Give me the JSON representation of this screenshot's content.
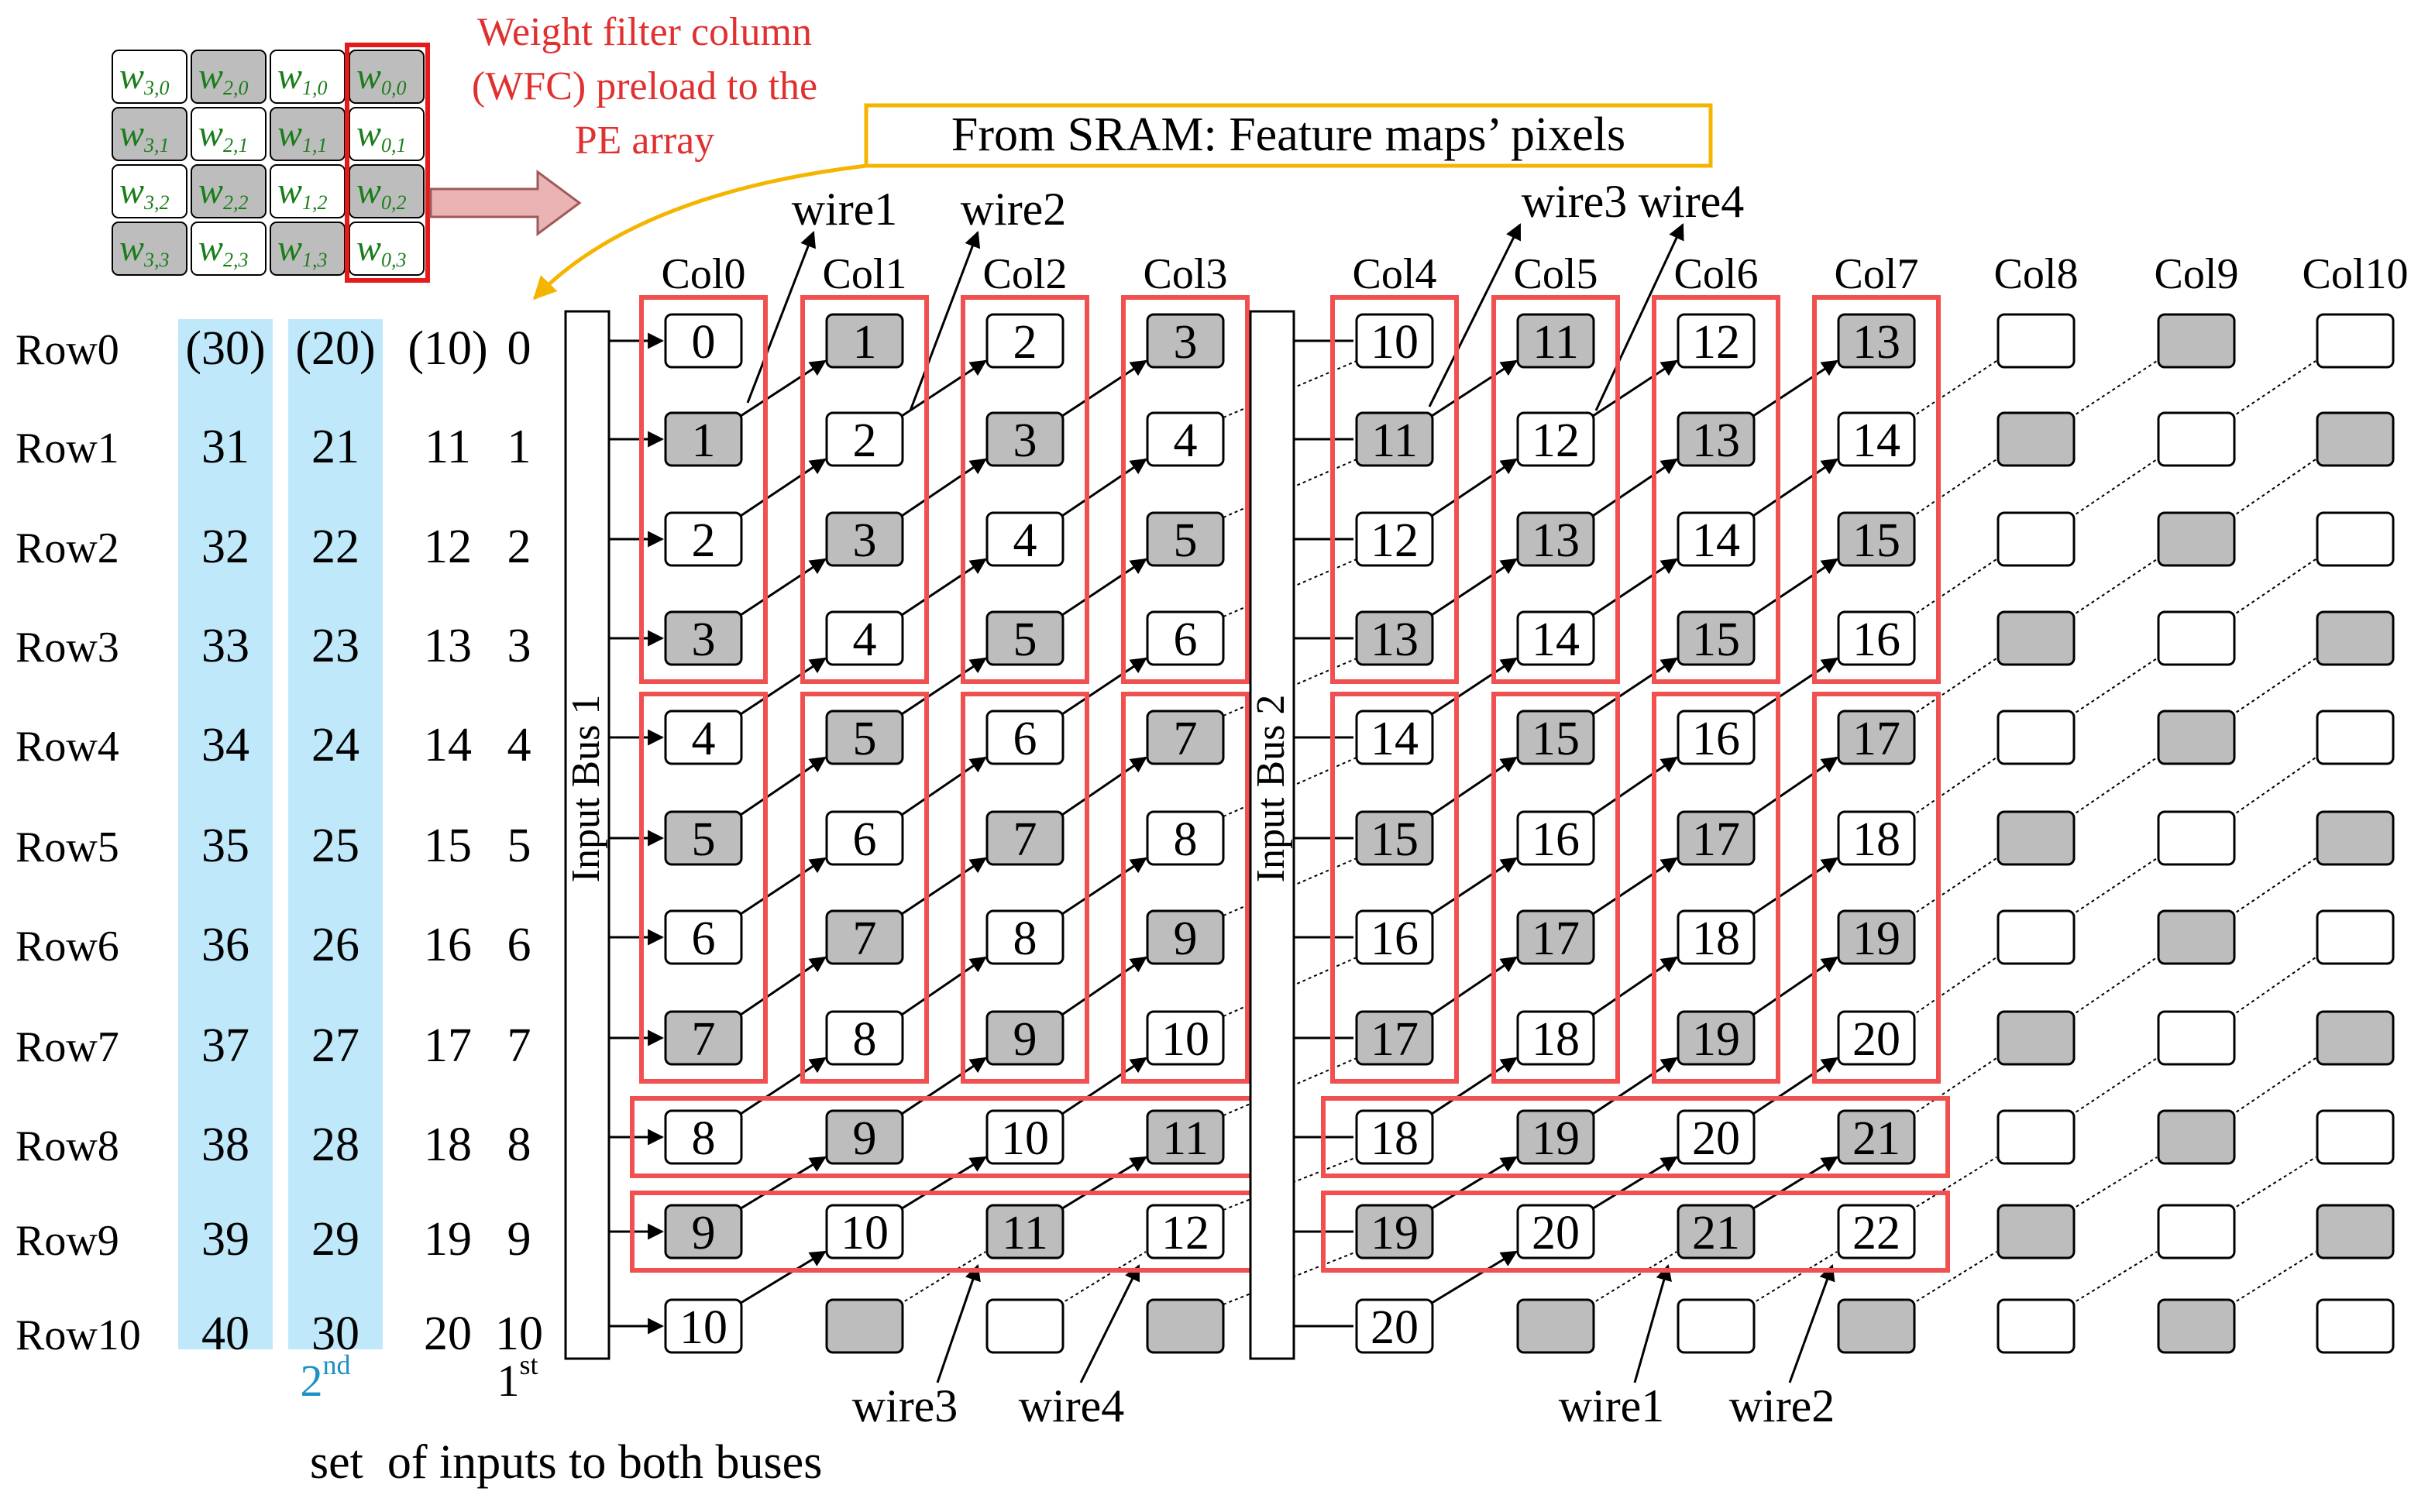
{
  "weight_grid": {
    "rows": [
      [
        "3,0",
        "2,0",
        "1,0",
        "0,0"
      ],
      [
        "3,1",
        "2,1",
        "1,1",
        "0,1"
      ],
      [
        "3,2",
        "2,2",
        "1,2",
        "0,2"
      ],
      [
        "3,3",
        "2,3",
        "1,3",
        "0,3"
      ]
    ],
    "shaded": [
      [
        false,
        true,
        false,
        true
      ],
      [
        true,
        false,
        true,
        false
      ],
      [
        false,
        true,
        false,
        true
      ],
      [
        true,
        false,
        true,
        false
      ]
    ],
    "letter": "w",
    "caption": [
      "Weight filter column",
      "(WFC) preload to the",
      "PE array"
    ]
  },
  "sram_label": "From SRAM: Feature maps’ pixels",
  "row_labels": [
    "Row0",
    "Row1",
    "Row2",
    "Row3",
    "Row4",
    "Row5",
    "Row6",
    "Row7",
    "Row8",
    "Row9",
    "Row10"
  ],
  "input_columns": {
    "set_a": [
      "(30)",
      "31",
      "32",
      "33",
      "34",
      "35",
      "36",
      "37",
      "38",
      "39",
      "40"
    ],
    "set_b": [
      "(20)",
      "21",
      "22",
      "23",
      "24",
      "25",
      "26",
      "27",
      "28",
      "29",
      "30"
    ],
    "set_c": [
      "(10)",
      "11",
      "12",
      "13",
      "14",
      "15",
      "16",
      "17",
      "18",
      "19",
      "20"
    ],
    "set_d": [
      "0",
      "1",
      "2",
      "3",
      "4",
      "5",
      "6",
      "7",
      "8",
      "9",
      "10"
    ]
  },
  "second_label": {
    "num": "2",
    "sup": "nd"
  },
  "first_label": {
    "num": "1",
    "sup": "st"
  },
  "bottom_caption": "set  of inputs to both buses",
  "bus_labels": [
    "Input Bus 1",
    "Input Bus 2"
  ],
  "col_labels": [
    "Col0",
    "Col1",
    "Col2",
    "Col3",
    "Col4",
    "Col5",
    "Col6",
    "Col7",
    "Col8",
    "Col9",
    "Col10"
  ],
  "pe_grid": [
    [
      "0",
      "1",
      "2",
      "3",
      "10",
      "11",
      "12",
      "13",
      "",
      "",
      ""
    ],
    [
      "1",
      "2",
      "3",
      "4",
      "11",
      "12",
      "13",
      "14",
      "",
      "",
      ""
    ],
    [
      "2",
      "3",
      "4",
      "5",
      "12",
      "13",
      "14",
      "15",
      "",
      "",
      ""
    ],
    [
      "3",
      "4",
      "5",
      "6",
      "13",
      "14",
      "15",
      "16",
      "",
      "",
      ""
    ],
    [
      "4",
      "5",
      "6",
      "7",
      "14",
      "15",
      "16",
      "17",
      "",
      "",
      ""
    ],
    [
      "5",
      "6",
      "7",
      "8",
      "15",
      "16",
      "17",
      "18",
      "",
      "",
      ""
    ],
    [
      "6",
      "7",
      "8",
      "9",
      "16",
      "17",
      "18",
      "19",
      "",
      "",
      ""
    ],
    [
      "7",
      "8",
      "9",
      "10",
      "17",
      "18",
      "19",
      "20",
      "",
      "",
      ""
    ],
    [
      "8",
      "9",
      "10",
      "11",
      "18",
      "19",
      "20",
      "21",
      "",
      "",
      ""
    ],
    [
      "9",
      "10",
      "11",
      "12",
      "19",
      "20",
      "21",
      "22",
      "",
      "",
      ""
    ],
    [
      "10",
      "",
      "",
      "",
      "20",
      "",
      "",
      "",
      "",
      "",
      ""
    ]
  ],
  "wire_labels_top": [
    "wire1",
    "wire2",
    "wire3",
    "wire4"
  ],
  "wire_labels_bottom": [
    "wire3",
    "wire4",
    "wire1",
    "wire2"
  ],
  "colors": {
    "red": "#f05050",
    "cyan": "#bfe9fa",
    "shade": "#bdbdbd",
    "orange": "#f5b400",
    "weight_green": "#1a7d1a",
    "caption_red": "#e03030",
    "cyan_text": "#1e90c8"
  }
}
